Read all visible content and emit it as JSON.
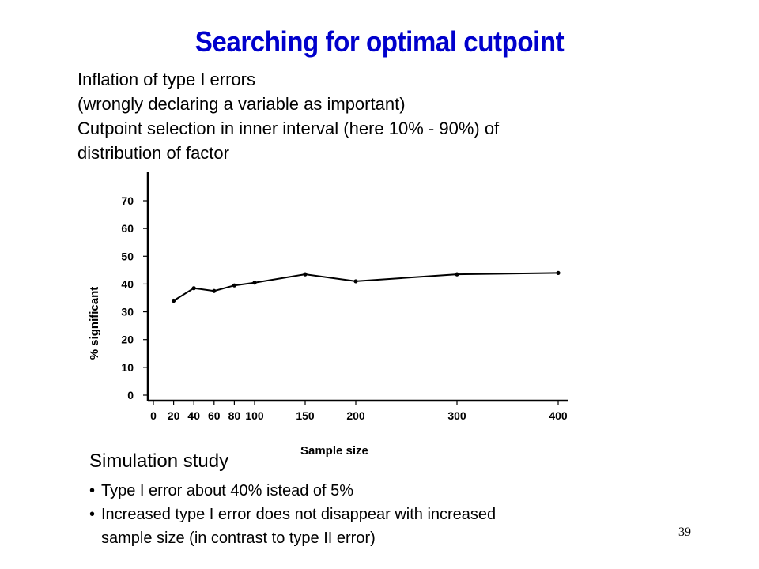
{
  "slide": {
    "title": "Searching for optimal cutpoint",
    "intro_lines": [
      "Inflation of type I errors",
      "(wrongly declaring a variable as important)",
      "Cutpoint selection in inner interval (here 10% - 90%) of",
      "distribution of factor"
    ],
    "simulation_heading": "Simulation study",
    "bullets": [
      "Type I error about 40% istead of 5%",
      "Increased type I error does not disappear with increased sample size (in contrast to type II error)"
    ],
    "bullet_lines": [
      [
        "Type I error about 40% istead of 5%"
      ],
      [
        "Increased type I error does not disappear with increased",
        "sample size (in contrast to type II error)"
      ]
    ],
    "page_number": "39",
    "title_color": "#0000cc"
  },
  "chart_data": {
    "type": "line",
    "xlabel": "Sample size",
    "ylabel": "% significant",
    "x_ticks": [
      0,
      20,
      40,
      60,
      80,
      100,
      150,
      200,
      300,
      400
    ],
    "y_ticks": [
      0,
      10,
      20,
      30,
      40,
      50,
      60,
      70
    ],
    "xlim": [
      0,
      400
    ],
    "ylim": [
      0,
      75
    ],
    "grid": false,
    "series": [
      {
        "x": [
          20,
          40,
          60,
          80,
          100,
          150,
          200,
          300,
          400
        ],
        "y": [
          34,
          38.5,
          37.5,
          39.5,
          40.5,
          43.5,
          41,
          43.5,
          44
        ]
      }
    ]
  }
}
